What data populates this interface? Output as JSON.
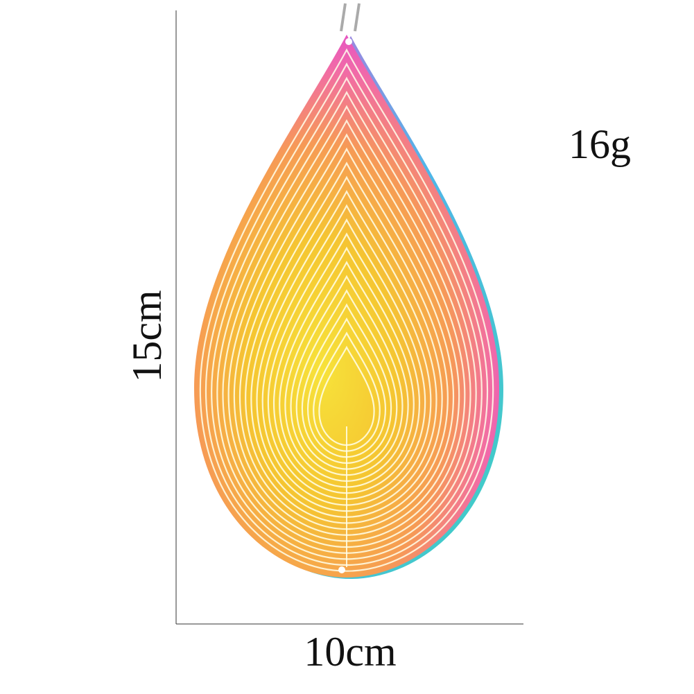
{
  "labels": {
    "weight": "16g",
    "height": "15cm",
    "width": "10cm"
  }
}
